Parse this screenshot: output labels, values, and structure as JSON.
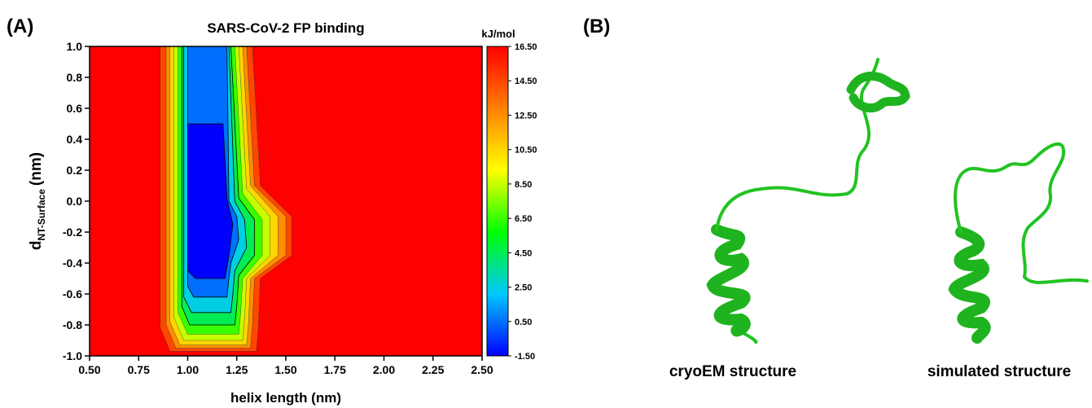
{
  "panel_a_label": "(A)",
  "panel_b_label": "(B)",
  "chart_data": {
    "type": "contour",
    "title": "SARS-CoV-2 FP binding",
    "x_label": "helix length (nm)",
    "y_label": {
      "main": "d",
      "sub": "NT-Surface",
      "unit": "(nm)"
    },
    "xlim": [
      0.5,
      2.5
    ],
    "xticks": [
      {
        "value": 0.5,
        "label": "0.50"
      },
      {
        "value": 0.75,
        "label": "0.75"
      },
      {
        "value": 1,
        "label": "1.00"
      },
      {
        "value": 1.25,
        "label": "1.25"
      },
      {
        "value": 1.5,
        "label": "1.50"
      },
      {
        "value": 1.75,
        "label": "1.75"
      },
      {
        "value": 2,
        "label": "2.00"
      },
      {
        "value": 2.25,
        "label": "2.25"
      },
      {
        "value": 2.5,
        "label": "2.50"
      }
    ],
    "ylim": [
      -1,
      1
    ],
    "yticks": [
      {
        "value": -1,
        "label": "-1.0"
      },
      -0.8,
      -0.6,
      -0.4,
      -0.2,
      {
        "value": 0,
        "label": "0.0"
      },
      0.2,
      0.4,
      0.6,
      0.8,
      {
        "value": 1,
        "label": "1.0"
      }
    ],
    "colorbar_label": "kJ/mol",
    "zlim": [
      -1.5,
      16.5
    ],
    "zticks": [
      {
        "value": -1.5,
        "label": "-1.50"
      },
      {
        "value": 0.5,
        "label": "0.50"
      },
      {
        "value": 2.5,
        "label": "2.50"
      },
      {
        "value": 4.5,
        "label": "4.50"
      },
      {
        "value": 6.5,
        "label": "6.50"
      },
      {
        "value": 8.5,
        "label": "8.50"
      },
      {
        "value": 10.5,
        "label": "10.50"
      },
      {
        "value": 12.5,
        "label": "12.50"
      },
      {
        "value": 14.5,
        "label": "14.50"
      },
      {
        "value": 16.5,
        "label": "16.50"
      }
    ],
    "colormap": [
      "#0000ff",
      "#00c8ff",
      "#00ff00",
      "#ffff00",
      "#ff8000",
      "#ff0000"
    ],
    "contours": [
      {
        "level": 14.5,
        "x": [
          0.86,
          0.86,
          0.91,
          1.35,
          1.36,
          1.37,
          1.53,
          1.53,
          1.37,
          1.33
        ],
        "y": [
          1,
          -0.82,
          -0.97,
          -0.97,
          -0.82,
          -0.5,
          -0.35,
          -0.1,
          0.1,
          1
        ]
      },
      {
        "level": 12.5,
        "x": [
          0.89,
          0.89,
          0.94,
          1.32,
          1.33,
          1.34,
          1.5,
          1.5,
          1.34,
          1.3
        ],
        "y": [
          1,
          -0.8,
          -0.95,
          -0.95,
          -0.8,
          -0.5,
          -0.35,
          -0.1,
          0.1,
          1
        ]
      },
      {
        "level": 10.5,
        "x": [
          0.91,
          0.91,
          0.96,
          1.3,
          1.31,
          1.32,
          1.46,
          1.46,
          1.32,
          1.28
        ],
        "y": [
          1,
          -0.78,
          -0.93,
          -0.93,
          -0.78,
          -0.5,
          -0.35,
          -0.1,
          0.1,
          1
        ]
      },
      {
        "level": 8.5,
        "x": [
          0.93,
          0.93,
          0.98,
          1.28,
          1.29,
          1.3,
          1.42,
          1.42,
          1.3,
          1.26
        ],
        "y": [
          1,
          -0.75,
          -0.9,
          -0.9,
          -0.75,
          -0.5,
          -0.35,
          -0.1,
          0.08,
          1
        ]
      },
      {
        "level": 6.5,
        "x": [
          0.95,
          0.95,
          1.0,
          1.26,
          1.27,
          1.28,
          1.38,
          1.38,
          1.28,
          1.24
        ],
        "y": [
          1,
          -0.72,
          -0.86,
          -0.86,
          -0.72,
          -0.5,
          -0.35,
          -0.12,
          0.05,
          1
        ]
      },
      {
        "level": 4.5,
        "x": [
          0.97,
          0.97,
          1.01,
          1.24,
          1.25,
          1.26,
          1.34,
          1.34,
          1.26,
          1.22
        ],
        "y": [
          1,
          -0.68,
          -0.8,
          -0.8,
          -0.68,
          -0.48,
          -0.35,
          -0.12,
          0.02,
          1
        ]
      },
      {
        "level": 2.5,
        "x": [
          0.98,
          0.98,
          1.02,
          1.22,
          1.23,
          1.24,
          1.3,
          1.29,
          1.24,
          1.21
        ],
        "y": [
          1,
          -0.62,
          -0.72,
          -0.72,
          -0.6,
          -0.45,
          -0.3,
          -0.12,
          0,
          1
        ]
      },
      {
        "level": 0.5,
        "x": [
          1.0,
          1.0,
          1.03,
          1.2,
          1.21,
          1.22,
          1.26,
          1.25,
          1.21,
          1.2
        ],
        "y": [
          1,
          -0.55,
          -0.62,
          -0.62,
          -0.5,
          -0.4,
          -0.25,
          -0.1,
          0,
          1
        ]
      },
      {
        "level": -1.5,
        "x": [
          1.0,
          1.0,
          1.04,
          1.19,
          1.21,
          1.23,
          1.2,
          1.18
        ],
        "y": [
          0.5,
          -0.45,
          -0.5,
          -0.5,
          -0.35,
          -0.15,
          0.02,
          0.5
        ]
      }
    ]
  },
  "structures": {
    "left_label": "cryoEM structure",
    "right_label": "simulated structure"
  }
}
